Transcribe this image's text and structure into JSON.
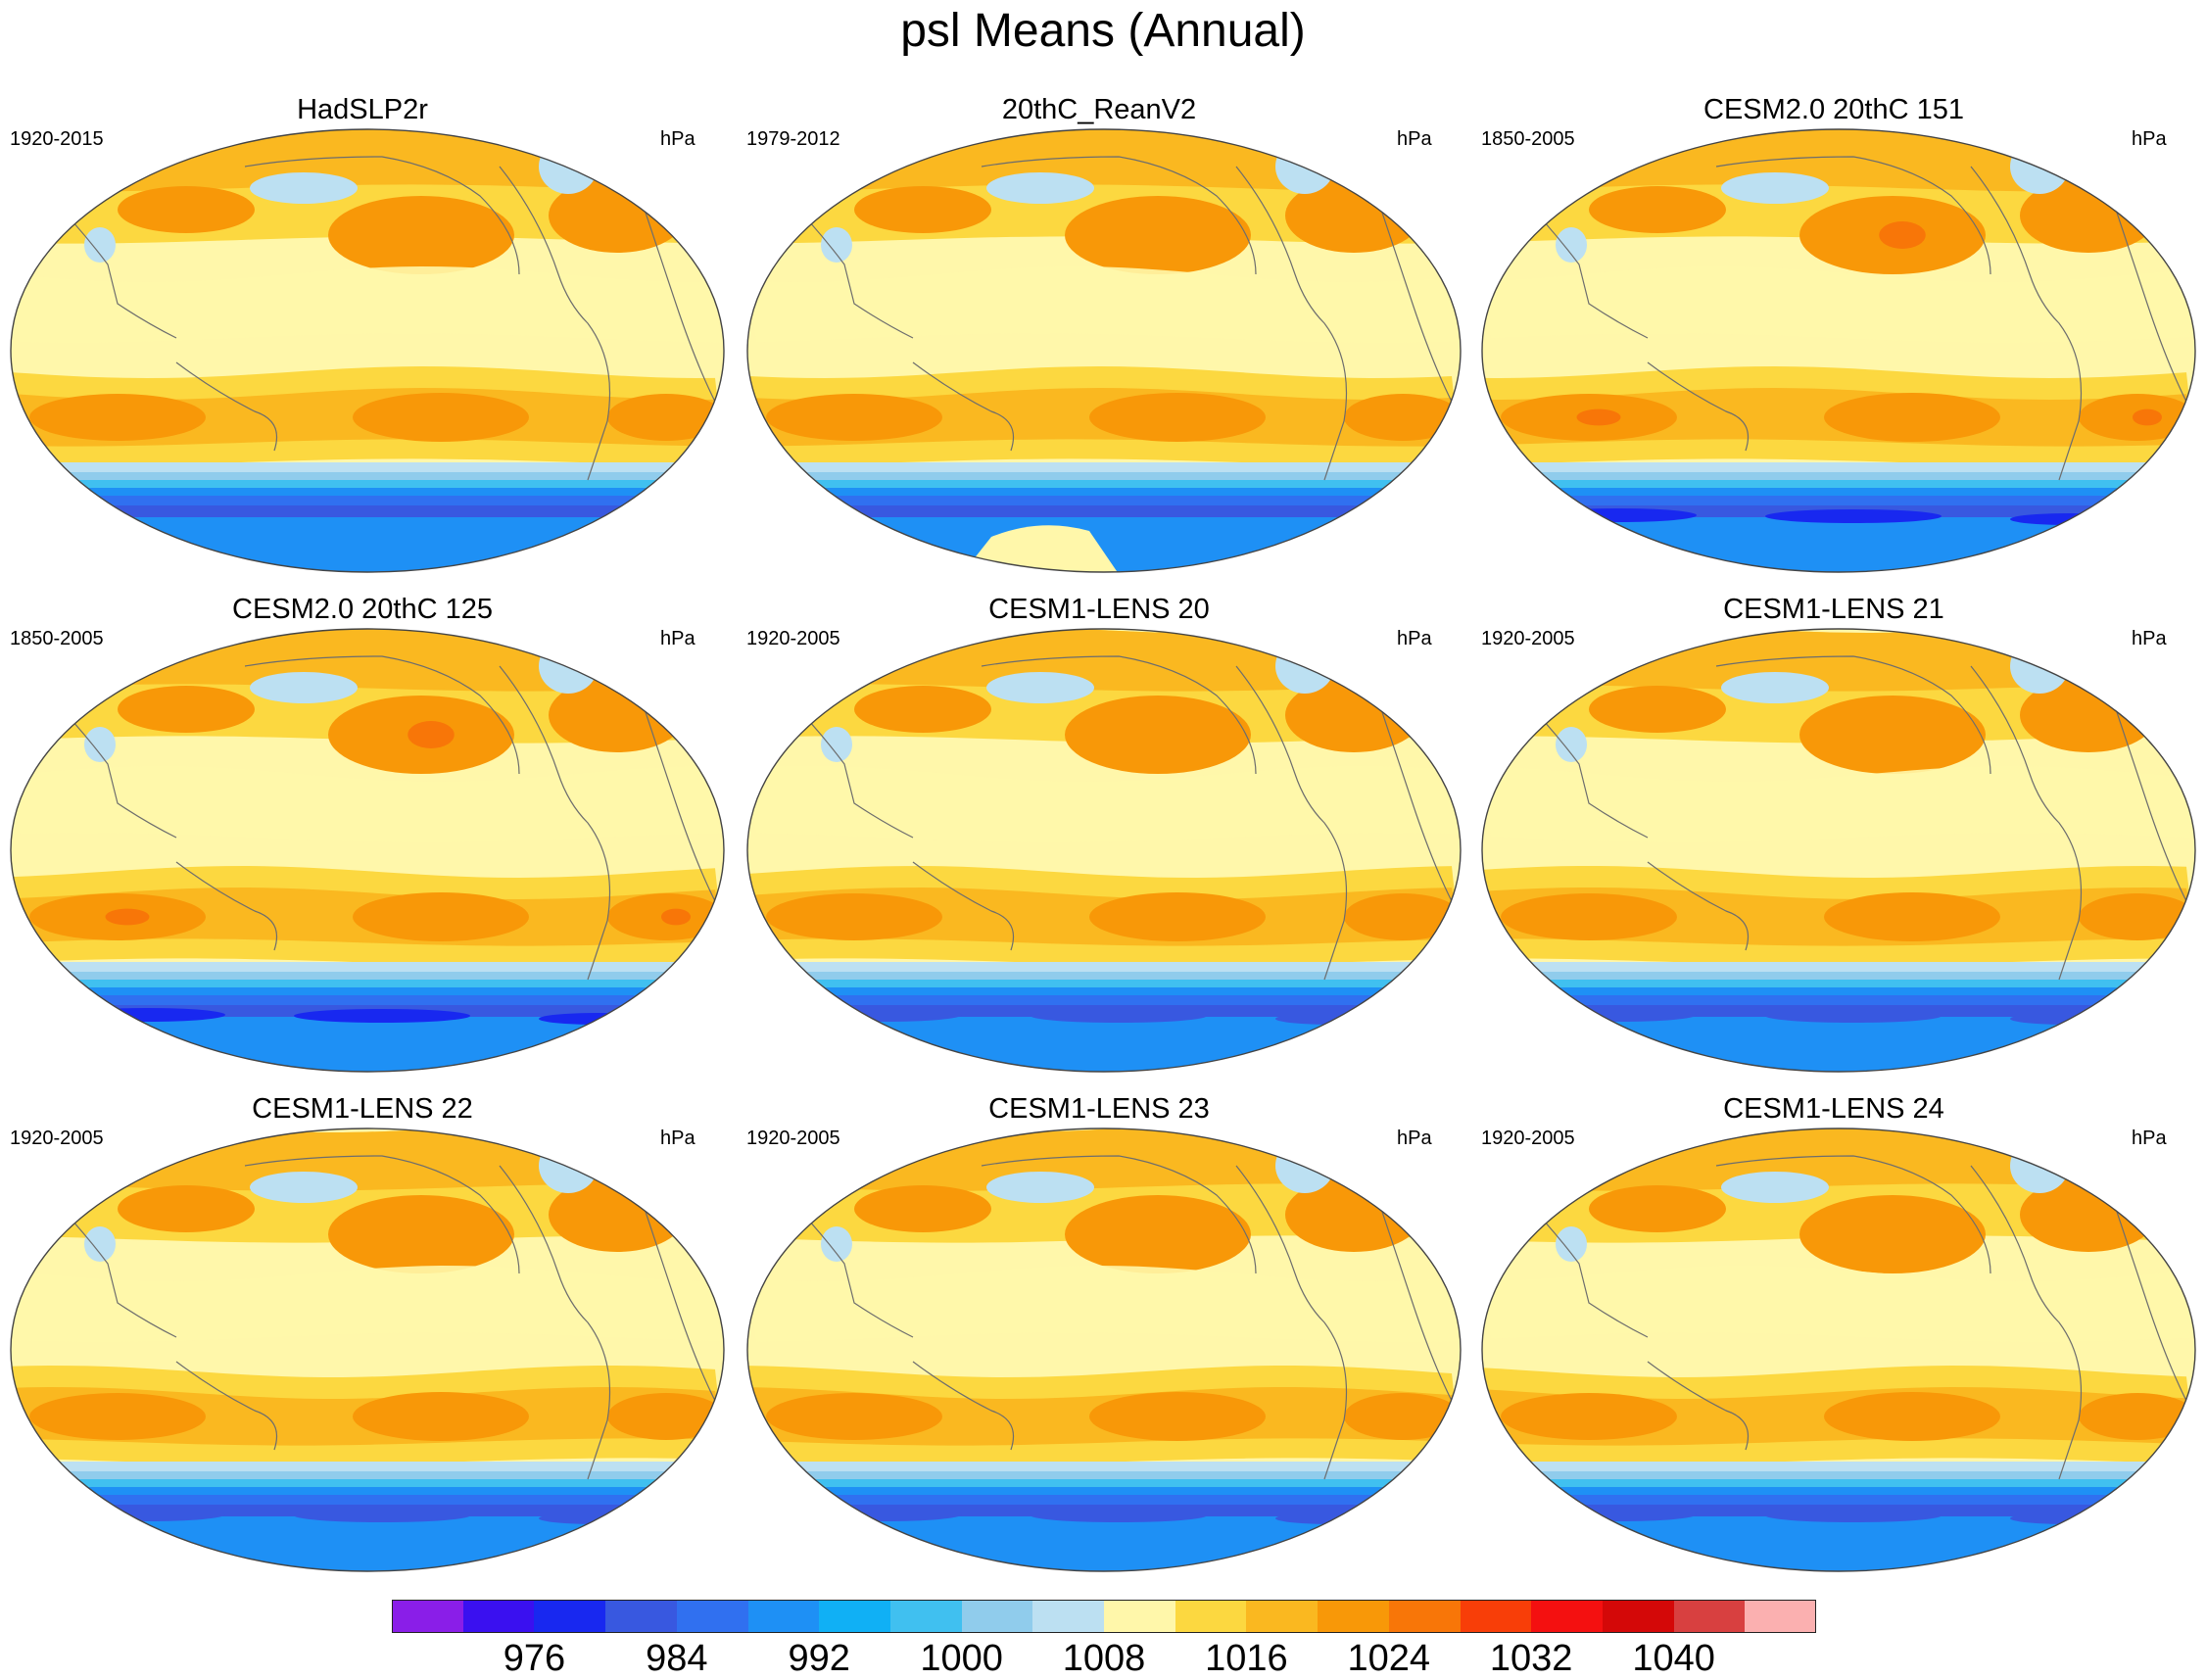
{
  "title": "psl Means (Annual)",
  "chart_data": {
    "type": "filled-contour map panel",
    "title": "psl Means (Annual)",
    "variable": "psl",
    "units": "hPa",
    "projection": "Robinson (global, Pacific-centered)",
    "panels": [
      {
        "title": "HadSLP2r",
        "period": "1920-2015",
        "units": "hPa",
        "variant": "obs"
      },
      {
        "title": "20thC_ReanV2",
        "period": "1979-2012",
        "units": "hPa",
        "variant": "rean"
      },
      {
        "title": "CESM2.0 20thC 151",
        "period": "1850-2005",
        "units": "hPa",
        "variant": "cesm2"
      },
      {
        "title": "CESM2.0 20thC 125",
        "period": "1850-2005",
        "units": "hPa",
        "variant": "cesm2"
      },
      {
        "title": "CESM1-LENS 20",
        "period": "1920-2005",
        "units": "hPa",
        "variant": "lens"
      },
      {
        "title": "CESM1-LENS 21",
        "period": "1920-2005",
        "units": "hPa",
        "variant": "lens"
      },
      {
        "title": "CESM1-LENS 22",
        "period": "1920-2005",
        "units": "hPa",
        "variant": "lens"
      },
      {
        "title": "CESM1-LENS 23",
        "period": "1920-2005",
        "units": "hPa",
        "variant": "lens"
      },
      {
        "title": "CESM1-LENS 24",
        "period": "1920-2005",
        "units": "hPa",
        "variant": "lens"
      }
    ],
    "colorbar": {
      "levels": [
        972,
        976,
        980,
        984,
        988,
        992,
        996,
        1000,
        1004,
        1008,
        1012,
        1016,
        1020,
        1024,
        1028,
        1032,
        1036,
        1040,
        1044
      ],
      "tick_labels": [
        "976",
        "984",
        "992",
        "1000",
        "1008",
        "1016",
        "1024",
        "1032",
        "1040"
      ],
      "colors": [
        "#8a1ee8",
        "#3a10f0",
        "#1828f0",
        "#3858e0",
        "#3070f0",
        "#1e90f5",
        "#10b0f5",
        "#40c0f0",
        "#90ccec",
        "#bce0f2",
        "#fff7aa",
        "#fcd840",
        "#fab820",
        "#f89808",
        "#f87608",
        "#f83e08",
        "#f41010",
        "#d40808",
        "#d84040",
        "#fbb0b0"
      ]
    }
  }
}
